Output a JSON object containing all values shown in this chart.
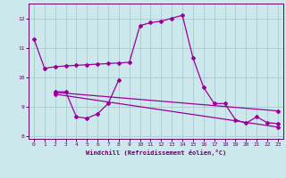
{
  "bg_color": "#cce8ec",
  "grid_color": "#aacccc",
  "line_color": "#990099",
  "spine_color": "#660066",
  "tick_color": "#660066",
  "xlabel": "Windchill (Refroidissement éolien,°C)",
  "xlim": [
    -0.5,
    23.5
  ],
  "ylim": [
    7.9,
    12.5
  ],
  "yticks": [
    8,
    9,
    10,
    11,
    12
  ],
  "xticks": [
    0,
    1,
    2,
    3,
    4,
    5,
    6,
    7,
    8,
    9,
    10,
    11,
    12,
    13,
    14,
    15,
    16,
    17,
    18,
    19,
    20,
    21,
    22,
    23
  ],
  "main_x": [
    0,
    1,
    2,
    3,
    4,
    5,
    6,
    7,
    8,
    9,
    10,
    11,
    12,
    13,
    14,
    15,
    16,
    17,
    18,
    19,
    20,
    21,
    22,
    23
  ],
  "main_y": [
    11.3,
    10.3,
    10.35,
    10.38,
    10.4,
    10.42,
    10.44,
    10.46,
    10.48,
    10.5,
    11.75,
    11.85,
    11.9,
    12.0,
    12.1,
    10.65,
    9.65,
    9.1,
    9.1,
    8.55,
    8.43,
    8.65,
    8.45,
    8.42
  ],
  "wiggle_x": [
    2,
    3,
    4,
    5,
    6,
    7,
    8
  ],
  "wiggle_y": [
    9.5,
    9.5,
    8.65,
    8.6,
    8.75,
    9.1,
    9.9
  ],
  "trend1_x": [
    2,
    23
  ],
  "trend1_y": [
    9.48,
    8.85
  ],
  "trend2_x": [
    2,
    23
  ],
  "trend2_y": [
    9.42,
    8.3
  ]
}
